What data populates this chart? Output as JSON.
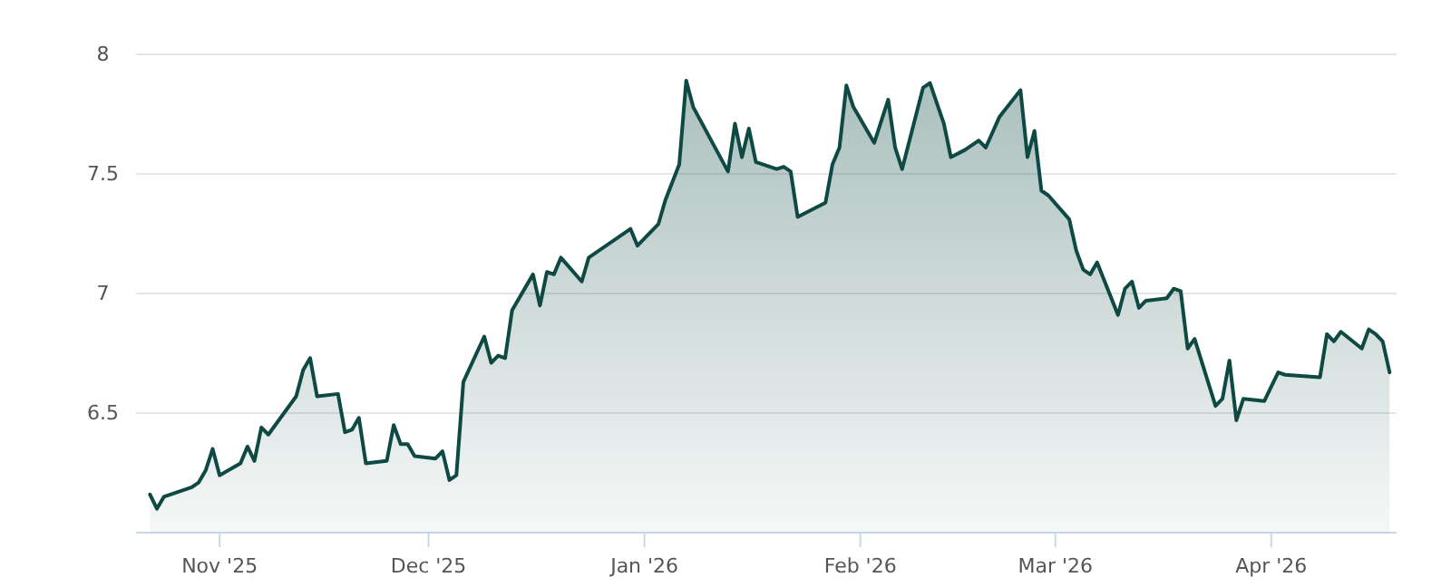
{
  "chart_data": {
    "type": "area",
    "color": "#0e4a43",
    "grid": "y",
    "xlim": [
      "2025-10-20",
      "2026-04-19"
    ],
    "xticks": [
      {
        "value": "2025-11-01",
        "label": "Nov '25"
      },
      {
        "value": "2025-12-01",
        "label": "Dec '25"
      },
      {
        "value": "2026-01-01",
        "label": "Jan '26"
      },
      {
        "value": "2026-02-01",
        "label": "Feb '26"
      },
      {
        "value": "2026-03-01",
        "label": "Mar '26"
      },
      {
        "value": "2026-04-01",
        "label": "Apr '26"
      }
    ],
    "ylim": [
      6,
      8
    ],
    "yticks": [
      6.5,
      7,
      7.5,
      8
    ],
    "x": [
      "2025-10-22",
      "2025-10-23",
      "2025-10-24",
      "2025-10-28",
      "2025-10-29",
      "2025-10-30",
      "2025-10-31",
      "2025-11-01",
      "2025-11-04",
      "2025-11-05",
      "2025-11-06",
      "2025-11-07",
      "2025-11-08",
      "2025-11-12",
      "2025-11-13",
      "2025-11-14",
      "2025-11-15",
      "2025-11-18",
      "2025-11-19",
      "2025-11-20",
      "2025-11-21",
      "2025-11-22",
      "2025-11-25",
      "2025-11-26",
      "2025-11-27",
      "2025-11-28",
      "2025-11-29",
      "2025-12-02",
      "2025-12-03",
      "2025-12-04",
      "2025-12-05",
      "2025-12-06",
      "2025-12-09",
      "2025-12-10",
      "2025-12-11",
      "2025-12-12",
      "2025-12-13",
      "2025-12-16",
      "2025-12-17",
      "2025-12-18",
      "2025-12-19",
      "2025-12-20",
      "2025-12-23",
      "2025-12-24",
      "2025-12-30",
      "2025-12-31",
      "2026-01-03",
      "2026-01-04",
      "2026-01-06",
      "2026-01-07",
      "2026-01-08",
      "2026-01-13",
      "2026-01-14",
      "2026-01-15",
      "2026-01-16",
      "2026-01-17",
      "2026-01-20",
      "2026-01-21",
      "2026-01-22",
      "2026-01-23",
      "2026-01-27",
      "2026-01-28",
      "2026-01-29",
      "2026-01-30",
      "2026-01-31",
      "2026-02-03",
      "2026-02-05",
      "2026-02-06",
      "2026-02-07",
      "2026-02-10",
      "2026-02-11",
      "2026-02-13",
      "2026-02-14",
      "2026-02-16",
      "2026-02-18",
      "2026-02-19",
      "2026-02-21",
      "2026-02-24",
      "2026-02-25",
      "2026-02-26",
      "2026-02-27",
      "2026-02-28",
      "2026-03-03",
      "2026-03-04",
      "2026-03-05",
      "2026-03-06",
      "2026-03-07",
      "2026-03-10",
      "2026-03-11",
      "2026-03-12",
      "2026-03-13",
      "2026-03-14",
      "2026-03-17",
      "2026-03-18",
      "2026-03-19",
      "2026-03-20",
      "2026-03-21",
      "2026-03-24",
      "2026-03-25",
      "2026-03-26",
      "2026-03-27",
      "2026-03-28",
      "2026-03-31",
      "2026-04-01",
      "2026-04-02",
      "2026-04-03",
      "2026-04-08",
      "2026-04-09",
      "2026-04-10",
      "2026-04-11",
      "2026-04-14",
      "2026-04-15",
      "2026-04-16",
      "2026-04-17",
      "2026-04-18"
    ],
    "values": [
      6.16,
      6.1,
      6.15,
      6.19,
      6.21,
      6.26,
      6.35,
      6.24,
      6.29,
      6.36,
      6.3,
      6.44,
      6.41,
      6.57,
      6.68,
      6.73,
      6.57,
      6.58,
      6.42,
      6.43,
      6.48,
      6.29,
      6.3,
      6.45,
      6.37,
      6.37,
      6.32,
      6.31,
      6.34,
      6.22,
      6.24,
      6.63,
      6.82,
      6.71,
      6.74,
      6.73,
      6.93,
      7.08,
      6.95,
      7.09,
      7.08,
      7.15,
      7.05,
      7.15,
      7.27,
      7.2,
      7.29,
      7.39,
      7.54,
      7.89,
      7.78,
      7.51,
      7.71,
      7.57,
      7.69,
      7.55,
      7.52,
      7.53,
      7.51,
      7.32,
      7.38,
      7.54,
      7.61,
      7.87,
      7.78,
      7.63,
      7.81,
      7.61,
      7.52,
      7.86,
      7.88,
      7.71,
      7.57,
      7.6,
      7.64,
      7.61,
      7.74,
      7.85,
      7.57,
      7.68,
      7.43,
      7.41,
      7.31,
      7.18,
      7.1,
      7.08,
      7.13,
      6.91,
      7.02,
      7.05,
      6.94,
      6.97,
      6.98,
      7.02,
      7.01,
      6.77,
      6.81,
      6.53,
      6.56,
      6.72,
      6.47,
      6.56,
      6.55,
      6.61,
      6.67,
      6.66,
      6.65,
      6.83,
      6.8,
      6.84,
      6.77,
      6.85,
      6.83,
      6.8,
      6.67
    ]
  }
}
